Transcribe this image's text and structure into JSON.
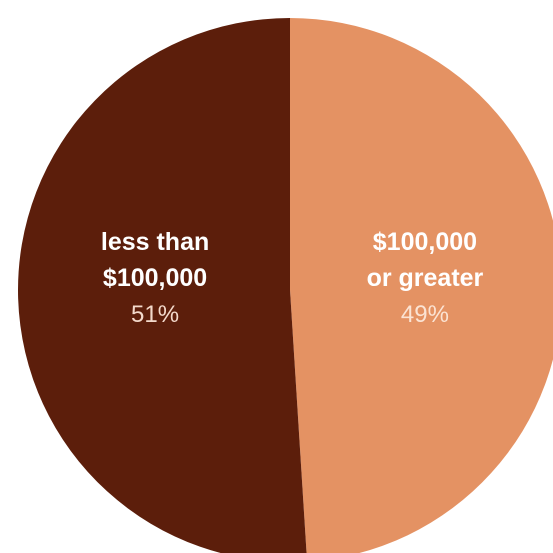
{
  "chart_data": {
    "type": "pie",
    "title": "",
    "start_angle_deg": 0,
    "direction": "clockwise",
    "slices": [
      {
        "label_lines": [
          "$100,000",
          "or greater"
        ],
        "value": 49,
        "value_label": "49%",
        "color": "#E49263",
        "value_label_color": "#FBE3D3"
      },
      {
        "label_lines": [
          "less than",
          "$100,000"
        ],
        "value": 51,
        "value_label": "51%",
        "color": "#5C1E0B",
        "value_label_color": "#F3D9CB"
      }
    ]
  }
}
